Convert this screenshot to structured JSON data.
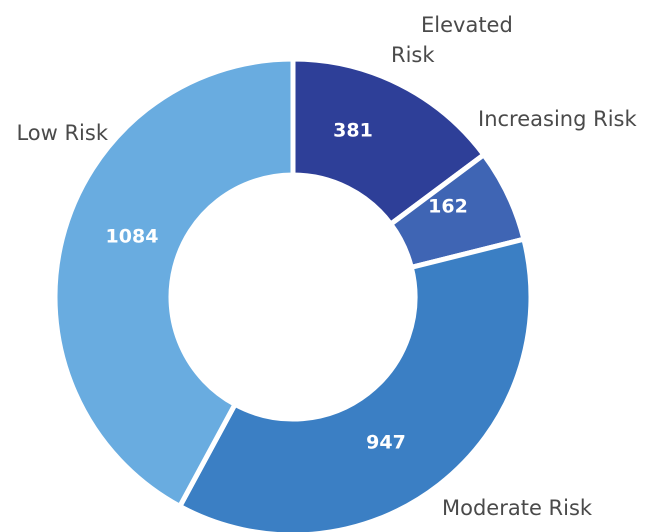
{
  "chart_data": {
    "type": "pie",
    "variant": "donut",
    "categories": [
      "Elevated Risk",
      "Increasing Risk",
      "Moderate Risk",
      "Low Risk"
    ],
    "values": [
      381,
      162,
      947,
      1084
    ],
    "colors": [
      "#2e3f98",
      "#3f65b4",
      "#3b7fc4",
      "#69ace0"
    ],
    "legend": "none"
  }
}
